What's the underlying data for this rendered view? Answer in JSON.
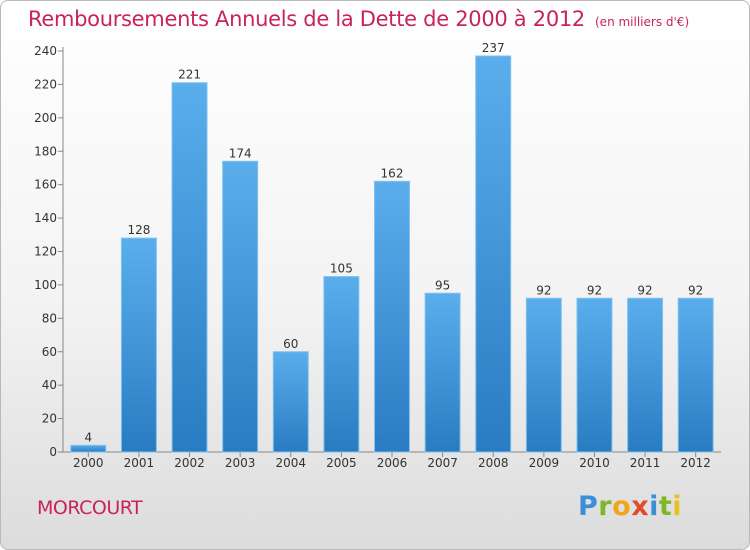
{
  "title": "Remboursements Annuels de la Dette de 2000 à 2012",
  "unit": "(en milliers d'€)",
  "commune": "MORCOURT",
  "logo": {
    "p": "P",
    "r": "r",
    "o": "o",
    "x": "x",
    "i1": "i",
    "t": "t",
    "i2": "i"
  },
  "colors": {
    "bar_light": "#5aaeec",
    "bar_dark": "#2a7cc2",
    "title": "#c8245a"
  },
  "chart_data": {
    "type": "bar",
    "title": "Remboursements Annuels de la Dette de 2000 à 2012",
    "xlabel": "",
    "ylabel": "",
    "categories": [
      "2000",
      "2001",
      "2002",
      "2003",
      "2004",
      "2005",
      "2006",
      "2007",
      "2008",
      "2009",
      "2010",
      "2011",
      "2012"
    ],
    "values": [
      4,
      128,
      221,
      174,
      60,
      105,
      162,
      95,
      237,
      92,
      92,
      92,
      92
    ],
    "ylim": [
      0,
      240
    ],
    "yticks": [
      0,
      20,
      40,
      60,
      80,
      100,
      120,
      140,
      160,
      180,
      200,
      220,
      240
    ],
    "grid": false,
    "data_labels": true
  }
}
